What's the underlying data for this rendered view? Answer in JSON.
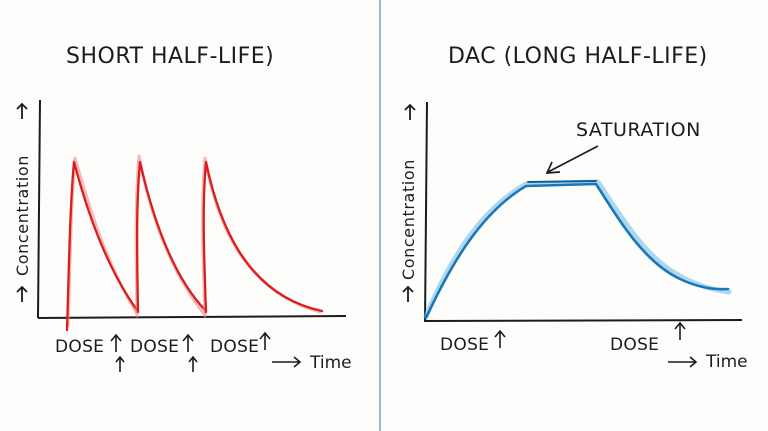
{
  "left_panel": {
    "title": "SHORT HALF-LIFE)",
    "y_axis_label": "Concentration",
    "x_axis_label": "Time",
    "dose_labels": [
      "DOSE",
      "DOSE",
      "DOSE"
    ],
    "curve_color": "#d81e1e"
  },
  "right_panel": {
    "title": "DAC (LONG HALF-LIFE)",
    "y_axis_label": "Concentration",
    "x_axis_label": "Time",
    "dose_labels": [
      "DOSE",
      "DOSE"
    ],
    "annotation": "SATURATION",
    "curve_color": "#1a78b8"
  },
  "colors": {
    "ink": "#1c1c1c",
    "divider": "#9fb6c8",
    "background": "#fdfdfb"
  }
}
